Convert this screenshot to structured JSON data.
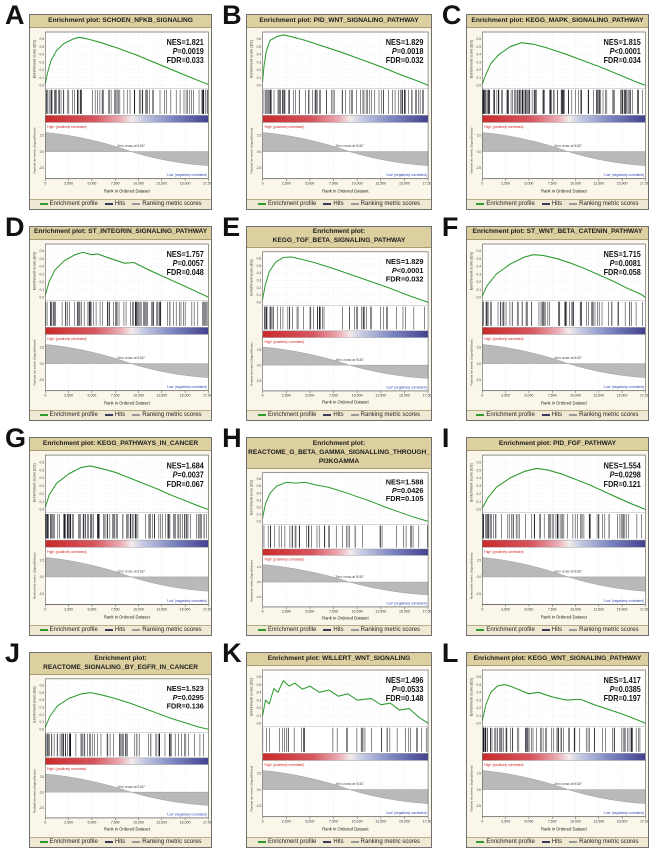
{
  "colors": {
    "curve": "#2e9b2e",
    "hits": "#16161e",
    "title_bg": "#dccfa0",
    "title_border": "#a99c72",
    "panel_border": "#6f6f6f",
    "panel_bg": "#fdfbf4",
    "margin_bg": "#faf6ea",
    "legend_bg": "#efe9d3",
    "metric_fill": "#b9b9b9",
    "metric_edge": "#8f8f8f",
    "high_text": "#cc2222",
    "low_text": "#2b3fae",
    "stat_text": "#111111",
    "legend_swatches": [
      "#2e9b2e",
      "#3a3a5c",
      "#999999"
    ],
    "gradient_stops": [
      [
        "0%",
        "#c92a2a"
      ],
      [
        "30%",
        "#d6565e"
      ],
      [
        "46%",
        "#eaacb4"
      ],
      [
        "53%",
        "#f3ebea"
      ],
      [
        "60%",
        "#c5cbe4"
      ],
      [
        "78%",
        "#7d86c1"
      ],
      [
        "100%",
        "#42418f"
      ]
    ]
  },
  "chart_data": {
    "type": "line",
    "description": "Twelve GSEA enrichment plots (running enrichment score vs. rank in ordered dataset)",
    "x_range": [
      0,
      17500
    ],
    "xlabel": "Rank in Ordered Dataset",
    "xtick_labels": [
      "0",
      "2,500",
      "5,000",
      "7,500",
      "10,000",
      "12,500",
      "15,000",
      "17,500"
    ],
    "xtick_values": [
      0,
      2500,
      5000,
      7500,
      10000,
      12500,
      15000,
      17500
    ],
    "es_axis": {
      "label": "Enrichment score (ES)",
      "tick_labels": [
        "0.6",
        "0.5",
        "0.4",
        "0.3",
        "0.2",
        "0.1",
        "0.0"
      ],
      "tick_values": [
        0.6,
        0.5,
        0.4,
        0.3,
        0.2,
        0.1,
        0.0
      ]
    },
    "metric_axis": {
      "label": "Ranked list metric (Signal2Noise)",
      "tick_labels": [
        "2.5",
        "0.0",
        "-2.5"
      ],
      "tick_values": [
        2.5,
        0.0,
        -2.5
      ]
    },
    "annotations": {
      "zero_cross": "Zero cross at 9187",
      "high": "'High' (positively correlated)",
      "low": "'Low' (negatively correlated)"
    },
    "legend": [
      "Enrichment profile",
      "Hits",
      "Ranking metric scores"
    ],
    "panels": [
      {
        "letter": "A",
        "title_lines": [
          "Enrichment plot: SCHOEN_NFKB_SIGNALING"
        ],
        "stats": [
          "NES=1.821",
          "P=0.0019",
          "FDR=0.033"
        ],
        "hits": 85,
        "es_curve": [
          [
            0,
            0.02
          ],
          [
            200,
            0.15
          ],
          [
            600,
            0.32
          ],
          [
            1200,
            0.45
          ],
          [
            2000,
            0.54
          ],
          [
            3000,
            0.6
          ],
          [
            3600,
            0.62
          ],
          [
            4500,
            0.6
          ],
          [
            6000,
            0.55
          ],
          [
            8000,
            0.47
          ],
          [
            10000,
            0.38
          ],
          [
            12000,
            0.28
          ],
          [
            14000,
            0.18
          ],
          [
            16000,
            0.08
          ],
          [
            17500,
            0.01
          ]
        ]
      },
      {
        "letter": "B",
        "title_lines": [
          "Enrichment plot: PID_WNT_SIGNALING_PATHWAY"
        ],
        "stats": [
          "NES=1.829",
          "P=0.0018",
          "FDR=0.032"
        ],
        "hits": 85,
        "es_curve": [
          [
            0,
            0.05
          ],
          [
            150,
            0.25
          ],
          [
            400,
            0.45
          ],
          [
            800,
            0.58
          ],
          [
            1500,
            0.63
          ],
          [
            2200,
            0.65
          ],
          [
            3000,
            0.63
          ],
          [
            4500,
            0.58
          ],
          [
            6500,
            0.5
          ],
          [
            8500,
            0.42
          ],
          [
            10500,
            0.33
          ],
          [
            12500,
            0.24
          ],
          [
            14500,
            0.14
          ],
          [
            16500,
            0.05
          ],
          [
            17500,
            0.0
          ]
        ]
      },
      {
        "letter": "C",
        "title_lines": [
          "Enrichment plot: KEGG_MAPK_SIGNALING_PATHWAY"
        ],
        "stats": [
          "NES=1.815",
          "P<0.0001",
          "FDR=0.034"
        ],
        "hits": 130,
        "es_curve": [
          [
            0,
            0.02
          ],
          [
            300,
            0.12
          ],
          [
            900,
            0.28
          ],
          [
            1800,
            0.4
          ],
          [
            3000,
            0.5
          ],
          [
            4200,
            0.55
          ],
          [
            5500,
            0.53
          ],
          [
            7000,
            0.48
          ],
          [
            9000,
            0.4
          ],
          [
            11000,
            0.31
          ],
          [
            13000,
            0.22
          ],
          [
            15000,
            0.12
          ],
          [
            16800,
            0.03
          ],
          [
            17500,
            0.0
          ]
        ]
      },
      {
        "letter": "D",
        "title_lines": [
          "Enrichment plot: ST_INTEGRIN_SIGNALING_PATHWAY"
        ],
        "stats": [
          "NES=1.757",
          "P=0.0057",
          "FDR=0.048"
        ],
        "hits": 95,
        "es_curve": [
          [
            0,
            0.03
          ],
          [
            400,
            0.2
          ],
          [
            1000,
            0.35
          ],
          [
            2000,
            0.47
          ],
          [
            3200,
            0.55
          ],
          [
            4000,
            0.58
          ],
          [
            5000,
            0.55
          ],
          [
            5600,
            0.56
          ],
          [
            7000,
            0.5
          ],
          [
            8500,
            0.44
          ],
          [
            9500,
            0.45
          ],
          [
            11000,
            0.36
          ],
          [
            13000,
            0.25
          ],
          [
            15000,
            0.14
          ],
          [
            17000,
            0.03
          ],
          [
            17500,
            0.0
          ]
        ]
      },
      {
        "letter": "E",
        "title_lines": [
          "Enrichment plot:",
          "KEGG_TGF_BETA_SIGNALING_PATHWAY"
        ],
        "stats": [
          "NES=1.829",
          "P<0.0001",
          "FDR=0.032"
        ],
        "hits": 55,
        "es_curve": [
          [
            0,
            0.04
          ],
          [
            250,
            0.22
          ],
          [
            700,
            0.42
          ],
          [
            1400,
            0.55
          ],
          [
            2200,
            0.61
          ],
          [
            3000,
            0.62
          ],
          [
            4000,
            0.59
          ],
          [
            5500,
            0.54
          ],
          [
            7500,
            0.46
          ],
          [
            9500,
            0.37
          ],
          [
            11500,
            0.28
          ],
          [
            13500,
            0.19
          ],
          [
            15500,
            0.09
          ],
          [
            17500,
            0.0
          ]
        ]
      },
      {
        "letter": "F",
        "title_lines": [
          "Enrichment plot: ST_WNT_BETA_CATENIN_PATHWAY"
        ],
        "stats": [
          "NES=1.715",
          "P=0.0081",
          "FDR=0.058"
        ],
        "hits": 75,
        "es_curve": [
          [
            0,
            0.02
          ],
          [
            500,
            0.15
          ],
          [
            1500,
            0.3
          ],
          [
            3000,
            0.43
          ],
          [
            4500,
            0.52
          ],
          [
            5500,
            0.55
          ],
          [
            6500,
            0.54
          ],
          [
            8000,
            0.5
          ],
          [
            9500,
            0.44
          ],
          [
            11000,
            0.37
          ],
          [
            12500,
            0.29
          ],
          [
            14000,
            0.21
          ],
          [
            15500,
            0.12
          ],
          [
            17000,
            0.04
          ],
          [
            17500,
            0.0
          ]
        ]
      },
      {
        "letter": "G",
        "title_lines": [
          "Enrichment plot: KEGG_PATHWAYS_IN_CANCER"
        ],
        "stats": [
          "NES=1.684",
          "P=0.0037",
          "FDR=0.067"
        ],
        "hits": 120,
        "es_curve": [
          [
            0,
            0.03
          ],
          [
            400,
            0.18
          ],
          [
            1200,
            0.33
          ],
          [
            2500,
            0.45
          ],
          [
            3800,
            0.53
          ],
          [
            4800,
            0.55
          ],
          [
            6000,
            0.52
          ],
          [
            7500,
            0.47
          ],
          [
            9000,
            0.4
          ],
          [
            10500,
            0.33
          ],
          [
            12000,
            0.26
          ],
          [
            13500,
            0.18
          ],
          [
            15000,
            0.11
          ],
          [
            16500,
            0.04
          ],
          [
            17500,
            0.0
          ]
        ]
      },
      {
        "letter": "H",
        "title_lines": [
          "Enrichment plot: REACTOME_G_BETA_GAMMA_SIGNALLING_THROUGH_",
          "PI3KGAMMA"
        ],
        "stats": [
          "NES=1.588",
          "P=0.0426",
          "FDR=0.105"
        ],
        "hits": 45,
        "es_curve": [
          [
            0,
            0.05
          ],
          [
            300,
            0.25
          ],
          [
            800,
            0.4
          ],
          [
            1500,
            0.5
          ],
          [
            2500,
            0.55
          ],
          [
            3500,
            0.54
          ],
          [
            4500,
            0.55
          ],
          [
            5500,
            0.52
          ],
          [
            7000,
            0.48
          ],
          [
            8500,
            0.42
          ],
          [
            10000,
            0.35
          ],
          [
            11500,
            0.28
          ],
          [
            13000,
            0.2
          ],
          [
            14500,
            0.13
          ],
          [
            16000,
            0.06
          ],
          [
            17500,
            0.0
          ]
        ]
      },
      {
        "letter": "I",
        "title_lines": [
          "Enrichment plot: PID_FGF_PATHWAY"
        ],
        "stats": [
          "NES=1.554",
          "P=0.0298",
          "FDR=0.121"
        ],
        "hits": 75,
        "es_curve": [
          [
            0,
            0.02
          ],
          [
            600,
            0.15
          ],
          [
            1500,
            0.28
          ],
          [
            3000,
            0.4
          ],
          [
            4500,
            0.48
          ],
          [
            5800,
            0.52
          ],
          [
            7000,
            0.5
          ],
          [
            8500,
            0.45
          ],
          [
            10000,
            0.38
          ],
          [
            11500,
            0.31
          ],
          [
            13000,
            0.23
          ],
          [
            14500,
            0.15
          ],
          [
            16000,
            0.07
          ],
          [
            17500,
            0.0
          ]
        ]
      },
      {
        "letter": "J",
        "title_lines": [
          "Enrichment plot:",
          "REACTOME_SIGNALING_BY_EGFR_IN_CANCER"
        ],
        "stats": [
          "NES=1.523",
          "P=0.0295",
          "FDR=0.136"
        ],
        "hits": 80,
        "es_curve": [
          [
            0,
            0.03
          ],
          [
            500,
            0.18
          ],
          [
            1300,
            0.32
          ],
          [
            2500,
            0.42
          ],
          [
            3800,
            0.48
          ],
          [
            4800,
            0.5
          ],
          [
            6000,
            0.47
          ],
          [
            7500,
            0.42
          ],
          [
            9000,
            0.36
          ],
          [
            10500,
            0.29
          ],
          [
            12000,
            0.22
          ],
          [
            13500,
            0.15
          ],
          [
            15000,
            0.09
          ],
          [
            16500,
            0.03
          ],
          [
            17500,
            0.0
          ]
        ]
      },
      {
        "letter": "K",
        "title_lines": [
          "Enrichment plot: WILLERT_WNT_SIGNALING"
        ],
        "stats": [
          "NES=1.496",
          "P=0.0533",
          "FDR=0.148"
        ],
        "hits": 38,
        "es_curve": [
          [
            0,
            0.1
          ],
          [
            300,
            0.3
          ],
          [
            700,
            0.25
          ],
          [
            1200,
            0.45
          ],
          [
            1600,
            0.4
          ],
          [
            2200,
            0.55
          ],
          [
            2800,
            0.48
          ],
          [
            3400,
            0.52
          ],
          [
            4200,
            0.44
          ],
          [
            5000,
            0.48
          ],
          [
            6000,
            0.4
          ],
          [
            7000,
            0.43
          ],
          [
            8000,
            0.35
          ],
          [
            9000,
            0.38
          ],
          [
            10000,
            0.3
          ],
          [
            11500,
            0.32
          ],
          [
            12500,
            0.24
          ],
          [
            13500,
            0.26
          ],
          [
            14500,
            0.17
          ],
          [
            15500,
            0.19
          ],
          [
            16500,
            0.08
          ],
          [
            17500,
            0.0
          ]
        ]
      },
      {
        "letter": "L",
        "title_lines": [
          "Enrichment plot: KEGG_WNT_SIGNALING_PATHWAY"
        ],
        "stats": [
          "NES=1.417",
          "P=0.0385",
          "FDR=0.197"
        ],
        "hits": 90,
        "es_curve": [
          [
            0,
            0.04
          ],
          [
            400,
            0.25
          ],
          [
            900,
            0.4
          ],
          [
            1600,
            0.48
          ],
          [
            2400,
            0.5
          ],
          [
            3200,
            0.47
          ],
          [
            4000,
            0.43
          ],
          [
            5000,
            0.38
          ],
          [
            6000,
            0.4
          ],
          [
            7500,
            0.34
          ],
          [
            9000,
            0.3
          ],
          [
            10500,
            0.31
          ],
          [
            12000,
            0.24
          ],
          [
            13500,
            0.18
          ],
          [
            15000,
            0.12
          ],
          [
            16500,
            0.05
          ],
          [
            17500,
            0.0
          ]
        ]
      }
    ]
  }
}
